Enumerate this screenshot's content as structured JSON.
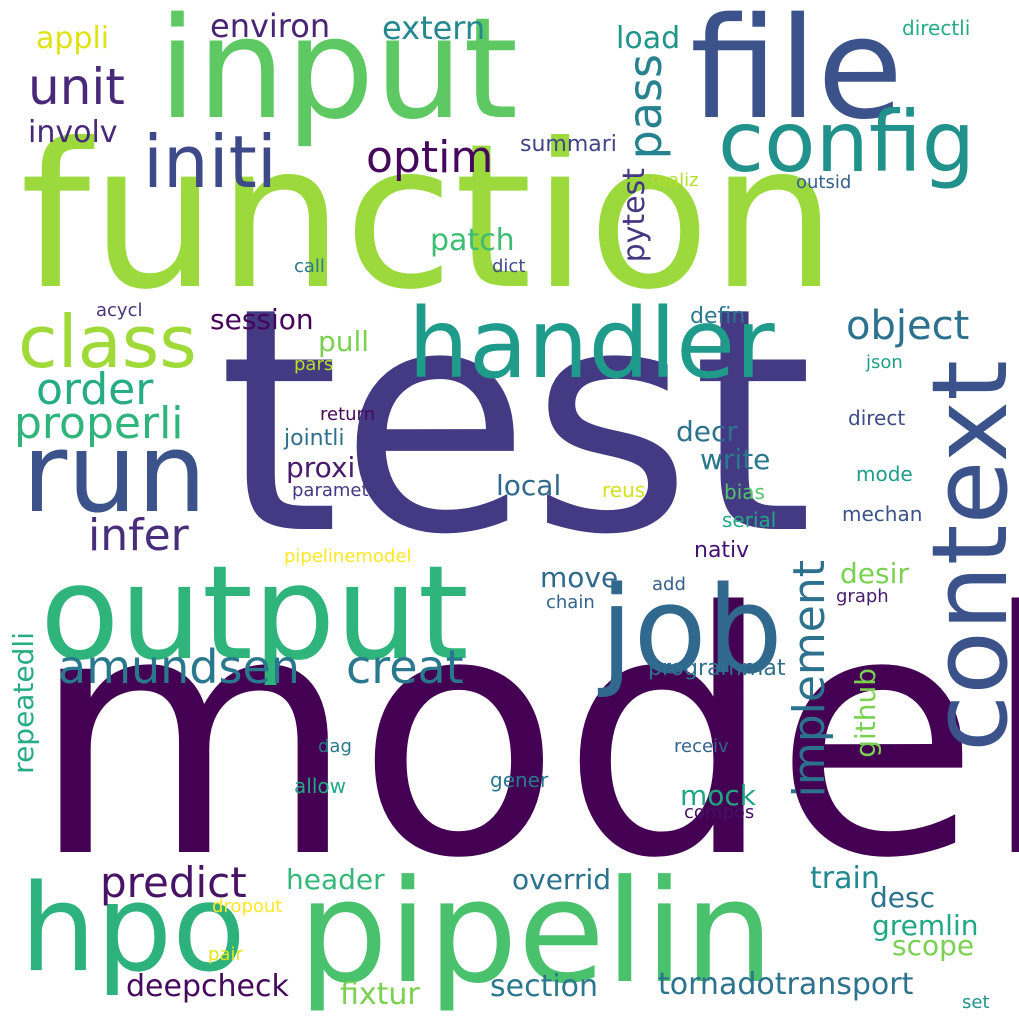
{
  "words": [
    {
      "text": "test",
      "color": "#443983"
    },
    {
      "text": "model",
      "color": "#440154"
    },
    {
      "text": "function",
      "color": "#9bd93c"
    },
    {
      "text": "input",
      "color": "#5ec962"
    },
    {
      "text": "file",
      "color": "#3b528b"
    },
    {
      "text": "pipelin",
      "color": "#4ac16d"
    },
    {
      "text": "output",
      "color": "#2fb47c"
    },
    {
      "text": "context",
      "color": "#3b528b"
    },
    {
      "text": "job",
      "color": "#31688e"
    },
    {
      "text": "handler",
      "color": "#1e9b8a"
    },
    {
      "text": "run",
      "color": "#3b528b"
    },
    {
      "text": "hpo",
      "color": "#2db27d"
    },
    {
      "text": "config",
      "color": "#21918c"
    },
    {
      "text": "initi",
      "color": "#3e4989"
    },
    {
      "text": "class",
      "color": "#a0da39"
    },
    {
      "text": "unit",
      "color": "#482878"
    },
    {
      "text": "amundsen",
      "color": "#2a788e"
    },
    {
      "text": "creat",
      "color": "#2a788e"
    },
    {
      "text": "order",
      "color": "#25ac82"
    },
    {
      "text": "properli",
      "color": "#2fb47c"
    },
    {
      "text": "implement",
      "color": "#2c728e"
    },
    {
      "text": "infer",
      "color": "#472d7b"
    },
    {
      "text": "predict",
      "color": "#471365"
    },
    {
      "text": "object",
      "color": "#2c728e"
    },
    {
      "text": "optim",
      "color": "#46085c"
    },
    {
      "text": "pass",
      "color": "#26828e"
    },
    {
      "text": "patch",
      "color": "#3dbc74"
    },
    {
      "text": "pytest",
      "color": "#453781"
    },
    {
      "text": "environ",
      "color": "#482475"
    },
    {
      "text": "extern",
      "color": "#23898e"
    },
    {
      "text": "load",
      "color": "#1f958b"
    },
    {
      "text": "appli",
      "color": "#dde318"
    },
    {
      "text": "involv",
      "color": "#482878"
    },
    {
      "text": "summari",
      "color": "#414487"
    },
    {
      "text": "directli",
      "color": "#25ac82"
    },
    {
      "text": "realiz",
      "color": "#b5de2b"
    },
    {
      "text": "outsid",
      "color": "#35608d"
    },
    {
      "text": "call",
      "color": "#2a788e"
    },
    {
      "text": "dict",
      "color": "#3e4a89"
    },
    {
      "text": "acycl",
      "color": "#463480"
    },
    {
      "text": "session",
      "color": "#450559"
    },
    {
      "text": "pull",
      "color": "#7ad151"
    },
    {
      "text": "defin",
      "color": "#2a788e"
    },
    {
      "text": "pars",
      "color": "#b8de29"
    },
    {
      "text": "json",
      "color": "#1fa088"
    },
    {
      "text": "return",
      "color": "#46075a"
    },
    {
      "text": "direct",
      "color": "#3e4a89"
    },
    {
      "text": "jointli",
      "color": "#2d708e"
    },
    {
      "text": "decr",
      "color": "#2c728e"
    },
    {
      "text": "proxi",
      "color": "#481a6c"
    },
    {
      "text": "write",
      "color": "#2a788e"
    },
    {
      "text": "mode",
      "color": "#1e9c89"
    },
    {
      "text": "paramet",
      "color": "#453882"
    },
    {
      "text": "local",
      "color": "#30698e"
    },
    {
      "text": "reus",
      "color": "#d2e21b"
    },
    {
      "text": "bias",
      "color": "#54c568"
    },
    {
      "text": "serial",
      "color": "#22a884"
    },
    {
      "text": "mechan",
      "color": "#3b528b"
    },
    {
      "text": "nativ",
      "color": "#440f76"
    },
    {
      "text": "pipelinemodel",
      "color": "#fde725"
    },
    {
      "text": "move",
      "color": "#30698e"
    },
    {
      "text": "desir",
      "color": "#7ad151"
    },
    {
      "text": "add",
      "color": "#355f8d"
    },
    {
      "text": "chain",
      "color": "#33638d"
    },
    {
      "text": "graph",
      "color": "#481c6e"
    },
    {
      "text": "programmat",
      "color": "#2e6f8e"
    },
    {
      "text": "github",
      "color": "#7ad151"
    },
    {
      "text": "repeatedli",
      "color": "#25ac82"
    },
    {
      "text": "dag",
      "color": "#2a788e"
    },
    {
      "text": "receiv",
      "color": "#33638d"
    },
    {
      "text": "allow",
      "color": "#22a884"
    },
    {
      "text": "gener",
      "color": "#2a788e"
    },
    {
      "text": "mock",
      "color": "#21a685"
    },
    {
      "text": "compos",
      "color": "#471063"
    },
    {
      "text": "header",
      "color": "#35b779"
    },
    {
      "text": "overrid",
      "color": "#2c728e"
    },
    {
      "text": "train",
      "color": "#23898e"
    },
    {
      "text": "desc",
      "color": "#2c728e"
    },
    {
      "text": "gremlin",
      "color": "#22a884"
    },
    {
      "text": "dropout",
      "color": "#fde725"
    },
    {
      "text": "scope",
      "color": "#7ad151"
    },
    {
      "text": "pair",
      "color": "#e5e419"
    },
    {
      "text": "deepcheck",
      "color": "#46085c"
    },
    {
      "text": "fixtur",
      "color": "#7ad151"
    },
    {
      "text": "section",
      "color": "#2a788e"
    },
    {
      "text": "tornadotransport",
      "color": "#2c728e"
    },
    {
      "text": "set",
      "color": "#21918c"
    }
  ]
}
